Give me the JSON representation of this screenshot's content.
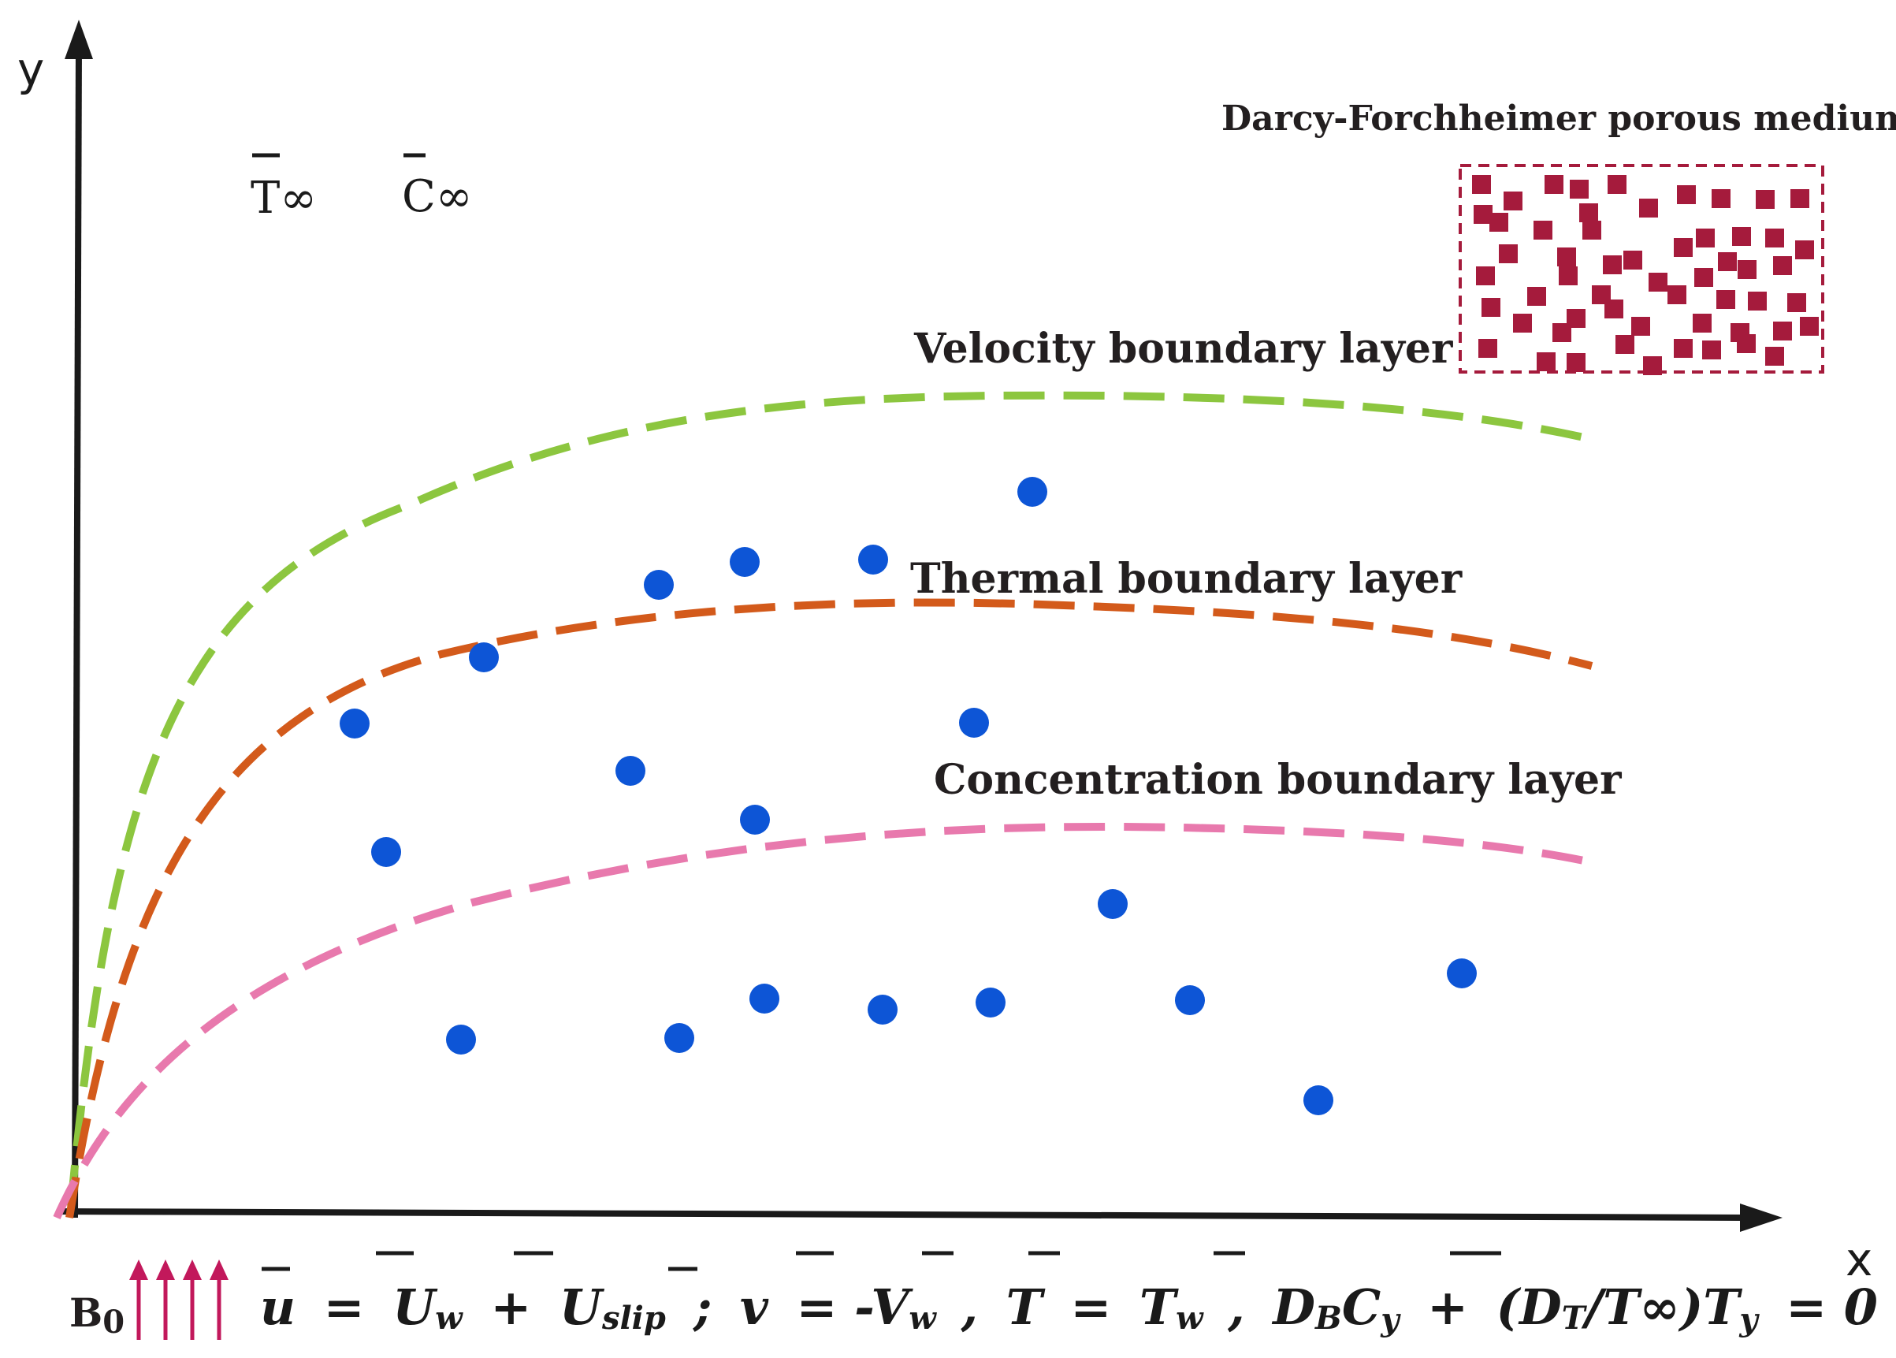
{
  "title_axes": {
    "x_label": "x",
    "y_label": "y"
  },
  "ambient": {
    "temperature": "T∞",
    "concentration": "C∞"
  },
  "porous_medium": {
    "label": "Darcy-Forchheimer porous medium",
    "color": "#a51b3c"
  },
  "layers": [
    {
      "label": "Velocity boundary layer",
      "color": "#8cc63f"
    },
    {
      "label": "Thermal boundary layer",
      "color": "#d35a1b"
    },
    {
      "label": "Concentration boundary layer",
      "color": "#e879ad"
    }
  ],
  "particles": {
    "color": "#0d55d6"
  },
  "magnetic_field": {
    "label": "B",
    "sub": "0",
    "color": "#c2185b"
  },
  "boundary_condition": {
    "u": "u",
    "eq1": "=",
    "Uw": "U",
    "w": "w",
    "plus1": "+",
    "Us": "U",
    "slip": "slip",
    "semi": ";",
    "v": "v",
    "eq2": "= -",
    "Vw": "V",
    "w2": "w",
    "comma1": ",",
    "T": "T",
    "eq3": "=",
    "Tw": "T",
    "w3": "w",
    "comma2": ",",
    "D": "D",
    "B": "B",
    "C": "C",
    "y1": "y",
    "plus2": "+",
    "open": "(D",
    "Tsub": "T",
    "slash": "/",
    "Tinf": "T∞",
    "close": ")",
    "T2": "T",
    "y2": "y",
    "zero": "= 0"
  }
}
